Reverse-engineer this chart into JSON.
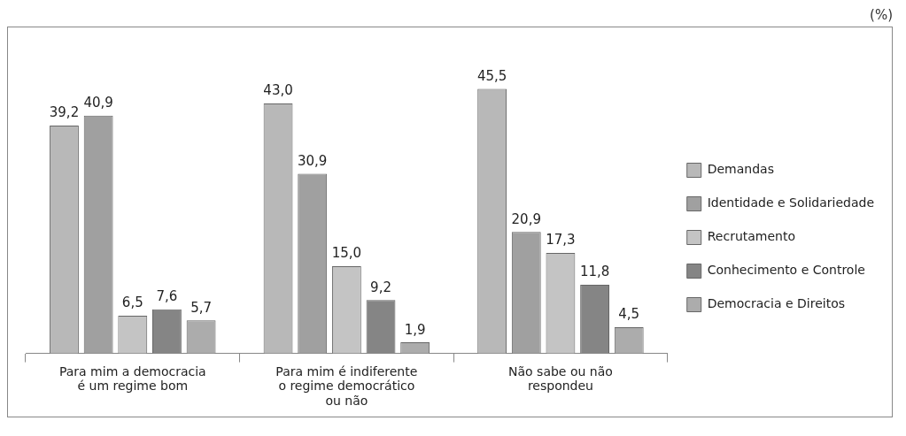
{
  "chart_data": {
    "type": "bar",
    "annotations": [
      "(%)"
    ],
    "categories": [
      "Para mim a democracia é um regime bom",
      "Para mim é indiferente o regime democrático ou não",
      "Não sabe ou não respondeu"
    ],
    "series": [
      {
        "name": "Demandas",
        "color": "#b8b8b8",
        "values": [
          39.2,
          43.0,
          45.5
        ],
        "value_labels": [
          "39,2",
          "43,0",
          "45,5"
        ]
      },
      {
        "name": "Identidade e Solidariedade",
        "color": "#a0a0a0",
        "values": [
          40.9,
          30.9,
          20.9
        ],
        "value_labels": [
          "40,9",
          "30,9",
          "20,9"
        ]
      },
      {
        "name": "Recrutamento",
        "color": "#c4c4c4",
        "values": [
          6.5,
          15.0,
          17.3
        ],
        "value_labels": [
          "6,5",
          "15,0",
          "17,3"
        ]
      },
      {
        "name": "Conhecimento e Controle",
        "color": "#858585",
        "values": [
          7.6,
          9.2,
          11.8
        ],
        "value_labels": [
          "7,6",
          "9,2",
          "11,8"
        ]
      },
      {
        "name": "Democracia e Direitos",
        "color": "#acacac",
        "values": [
          5.7,
          1.9,
          4.5
        ],
        "value_labels": [
          "5,7",
          "1,9",
          "4,5"
        ]
      }
    ],
    "legend": "right"
  }
}
